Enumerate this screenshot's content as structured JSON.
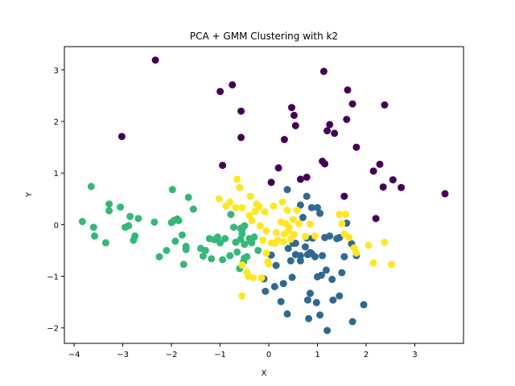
{
  "chart_data": {
    "type": "scatter",
    "title": "PCA + GMM Clustering with k2",
    "xlabel": "X",
    "ylabel": "Y",
    "xlim": [
      -4.2,
      4.0
    ],
    "ylim": [
      -2.3,
      3.45
    ],
    "xticks": [
      -4,
      -3,
      -2,
      -1,
      0,
      1,
      2,
      3
    ],
    "yticks": [
      -2,
      -1,
      0,
      1,
      2,
      3
    ],
    "grid": false,
    "legend": "none",
    "series": [
      {
        "color": "#440154",
        "points": [
          [
            -2.33,
            3.19
          ],
          [
            -3.02,
            1.71
          ],
          [
            -0.95,
            1.15
          ],
          [
            -1.0,
            2.58
          ],
          [
            -0.75,
            2.71
          ],
          [
            -0.57,
            2.2
          ],
          [
            -0.57,
            1.69
          ],
          [
            0.05,
            0.82
          ],
          [
            0.2,
            1.1
          ],
          [
            0.32,
            1.65
          ],
          [
            0.47,
            2.27
          ],
          [
            0.52,
            2.12
          ],
          [
            0.55,
            1.92
          ],
          [
            0.65,
            0.88
          ],
          [
            0.78,
            0.92
          ],
          [
            1.1,
            1.23
          ],
          [
            1.15,
            1.18
          ],
          [
            1.13,
            2.97
          ],
          [
            1.2,
            1.82
          ],
          [
            1.25,
            1.94
          ],
          [
            1.35,
            1.77
          ],
          [
            1.55,
            0.55
          ],
          [
            1.6,
            2.04
          ],
          [
            1.62,
            2.61
          ],
          [
            1.72,
            2.34
          ],
          [
            1.8,
            1.5
          ],
          [
            2.15,
            1.04
          ],
          [
            2.2,
            0.12
          ],
          [
            2.28,
            1.17
          ],
          [
            2.35,
            0.73
          ],
          [
            2.38,
            2.32
          ],
          [
            2.55,
            0.87
          ],
          [
            2.72,
            0.72
          ],
          [
            3.62,
            0.6
          ]
        ]
      },
      {
        "color": "#31688e",
        "points": [
          [
            -0.1,
            -1.05
          ],
          [
            -0.07,
            -1.29
          ],
          [
            0.05,
            -0.59
          ],
          [
            0.15,
            -0.79
          ],
          [
            0.12,
            -1.2
          ],
          [
            0.25,
            -1.49
          ],
          [
            0.3,
            -1.14
          ],
          [
            0.38,
            -1.73
          ],
          [
            0.4,
            -0.46
          ],
          [
            0.45,
            -0.7
          ],
          [
            0.48,
            -1.02
          ],
          [
            0.5,
            -0.36
          ],
          [
            0.55,
            -0.36
          ],
          [
            0.55,
            -0.58
          ],
          [
            0.65,
            -0.6
          ],
          [
            0.65,
            -0.7
          ],
          [
            0.7,
            0.14
          ],
          [
            0.75,
            -0.43
          ],
          [
            0.78,
            -0.26
          ],
          [
            0.8,
            -0.58
          ],
          [
            0.8,
            -1.46
          ],
          [
            0.82,
            -1.82
          ],
          [
            0.85,
            -1.33
          ],
          [
            0.85,
            -0.54
          ],
          [
            0.88,
            -0.56
          ],
          [
            0.9,
            -0.26
          ],
          [
            0.95,
            -0.62
          ],
          [
            0.98,
            -1.51
          ],
          [
            1.0,
            -1.01
          ],
          [
            1.05,
            -1.75
          ],
          [
            1.08,
            -0.98
          ],
          [
            1.1,
            -0.6
          ],
          [
            1.15,
            -0.25
          ],
          [
            1.18,
            -0.88
          ],
          [
            1.2,
            -2.05
          ],
          [
            1.25,
            -0.22
          ],
          [
            1.3,
            -1.06
          ],
          [
            1.32,
            -1.46
          ],
          [
            1.4,
            -0.27
          ],
          [
            1.45,
            -0.25
          ],
          [
            1.45,
            -1.38
          ],
          [
            1.5,
            -0.93
          ],
          [
            1.55,
            -0.62
          ],
          [
            1.6,
            0.03
          ],
          [
            1.7,
            -0.37
          ],
          [
            1.72,
            -1.88
          ],
          [
            1.8,
            -0.6
          ],
          [
            1.95,
            -1.55
          ],
          [
            0.38,
            0.68
          ],
          [
            0.65,
            0.38
          ],
          [
            0.78,
            0.55
          ],
          [
            0.88,
            0.33
          ],
          [
            1.0,
            0.33
          ],
          [
            1.05,
            0.22
          ]
        ]
      },
      {
        "color": "#35b779",
        "points": [
          [
            -3.83,
            0.06
          ],
          [
            -3.65,
            0.74
          ],
          [
            -3.6,
            -0.05
          ],
          [
            -3.58,
            -0.22
          ],
          [
            -3.35,
            -0.35
          ],
          [
            -3.28,
            0.4
          ],
          [
            -3.28,
            0.27
          ],
          [
            -3.05,
            0.34
          ],
          [
            -2.95,
            -0.05
          ],
          [
            -2.88,
            -0.02
          ],
          [
            -2.85,
            0.16
          ],
          [
            -2.78,
            -0.3
          ],
          [
            -2.75,
            -0.22
          ],
          [
            -2.68,
            0.12
          ],
          [
            -2.35,
            0.05
          ],
          [
            -2.25,
            -0.62
          ],
          [
            -2.1,
            -0.5
          ],
          [
            -2.0,
            0.04
          ],
          [
            -1.98,
            0.68
          ],
          [
            -1.95,
            0.08
          ],
          [
            -1.92,
            -0.32
          ],
          [
            -1.88,
            0.11
          ],
          [
            -1.85,
            0.08
          ],
          [
            -1.78,
            -0.2
          ],
          [
            -1.75,
            -0.77
          ],
          [
            -1.7,
            -0.48
          ],
          [
            -1.7,
            -0.42
          ],
          [
            -1.65,
            0.53
          ],
          [
            -1.55,
            0.3
          ],
          [
            -1.4,
            -0.46
          ],
          [
            -1.35,
            -0.61
          ],
          [
            -1.3,
            -0.5
          ],
          [
            -1.22,
            -0.27
          ],
          [
            -1.18,
            -0.66
          ],
          [
            -1.12,
            -0.29
          ],
          [
            -1.05,
            -0.24
          ],
          [
            -1.0,
            -0.35
          ],
          [
            -0.95,
            -0.68
          ],
          [
            -0.9,
            -0.27
          ],
          [
            -0.8,
            -0.6
          ],
          [
            -0.72,
            -0.05
          ],
          [
            -0.68,
            -0.34
          ],
          [
            -0.65,
            -0.53
          ],
          [
            -0.6,
            -0.85
          ],
          [
            -0.58,
            -0.28
          ],
          [
            -0.55,
            -0.18
          ],
          [
            -0.52,
            -0.72
          ],
          [
            -0.5,
            -0.38
          ],
          [
            -0.5,
            -0.65
          ],
          [
            -0.45,
            -0.62
          ],
          [
            -0.4,
            -0.27
          ],
          [
            -0.38,
            -0.32
          ],
          [
            -0.3,
            -0.24
          ],
          [
            -0.22,
            -0.5
          ],
          [
            -0.58,
            -0.07
          ],
          [
            -0.5,
            -0.02
          ],
          [
            -0.78,
            0.2
          ],
          [
            -0.55,
            -0.1
          ],
          [
            -0.35,
            -0.35
          ]
        ]
      },
      {
        "color": "#fde725",
        "points": [
          [
            -1.02,
            0.5
          ],
          [
            -0.88,
            0.36
          ],
          [
            -0.8,
            0.44
          ],
          [
            -0.68,
            0.33
          ],
          [
            -0.65,
            0.88
          ],
          [
            -0.6,
            0.72
          ],
          [
            -0.55,
            0.33
          ],
          [
            -0.55,
            -0.78
          ],
          [
            -0.55,
            -1.38
          ],
          [
            -0.45,
            -0.92
          ],
          [
            -0.42,
            -1.0
          ],
          [
            -0.4,
            0.18
          ],
          [
            -0.38,
            0.55
          ],
          [
            -0.35,
            0.08
          ],
          [
            -0.32,
            -1.03
          ],
          [
            -0.28,
            0.26
          ],
          [
            -0.25,
            0.4
          ],
          [
            -0.2,
            0.35
          ],
          [
            -0.18,
            -0.02
          ],
          [
            -0.15,
            -1.03
          ],
          [
            -0.12,
            -0.3
          ],
          [
            -0.08,
            0.25
          ],
          [
            -0.05,
            -0.12
          ],
          [
            -0.05,
            -0.55
          ],
          [
            -0.02,
            -0.72
          ],
          [
            0.0,
            -0.76
          ],
          [
            0.05,
            -0.35
          ],
          [
            0.1,
            0.36
          ],
          [
            0.12,
            -0.36
          ],
          [
            0.15,
            -0.15
          ],
          [
            0.18,
            -0.3
          ],
          [
            0.25,
            0.05
          ],
          [
            0.28,
            0.44
          ],
          [
            0.3,
            -0.33
          ],
          [
            0.32,
            -0.18
          ],
          [
            0.35,
            0.02
          ],
          [
            0.38,
            0.28
          ],
          [
            0.4,
            -0.12
          ],
          [
            0.42,
            -0.06
          ],
          [
            0.45,
            -0.28
          ],
          [
            0.5,
            0.1
          ],
          [
            0.52,
            -0.19
          ],
          [
            0.58,
            0.28
          ],
          [
            0.62,
            0.02
          ],
          [
            0.75,
            -0.23
          ],
          [
            0.85,
            0.01
          ],
          [
            0.95,
            -0.22
          ],
          [
            1.45,
            0.2
          ],
          [
            1.5,
            0.02
          ],
          [
            1.55,
            -0.18
          ],
          [
            1.58,
            0.2
          ],
          [
            1.65,
            -0.25
          ],
          [
            1.75,
            -0.45
          ],
          [
            1.8,
            -0.55
          ],
          [
            2.05,
            -0.4
          ],
          [
            2.15,
            -0.74
          ],
          [
            2.38,
            -0.34
          ],
          [
            2.52,
            -0.77
          ]
        ]
      }
    ]
  }
}
